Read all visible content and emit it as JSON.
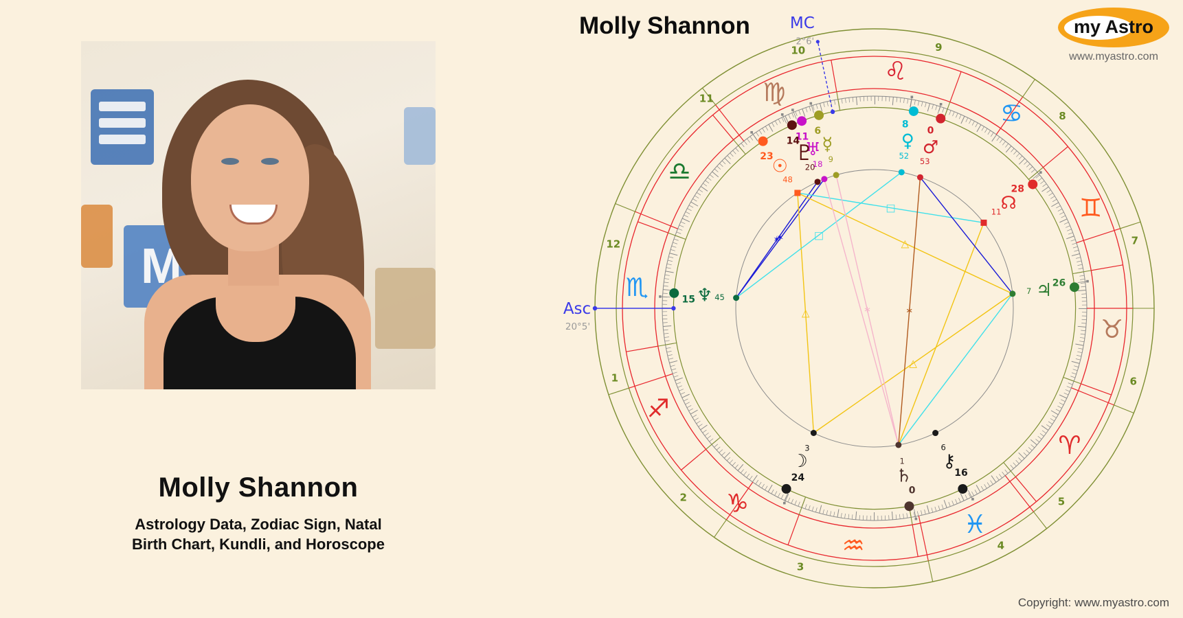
{
  "page": {
    "background": "#FBF1DE",
    "copyright": "Copyright: www.myastro.com"
  },
  "left_panel": {
    "name": "Molly Shannon",
    "subtitle_line1": "Astrology Data, Zodiac Sign, Natal",
    "subtitle_line2": "Birth Chart, Kundli, and Horoscope",
    "photo_alt": "Molly Shannon portrait"
  },
  "logo": {
    "text": "my Astro",
    "website": "www.myastro.com",
    "ellipse_color": "#F6A318"
  },
  "chart_data": {
    "type": "natal-wheel",
    "title": "Molly Shannon",
    "ascendant": {
      "label": "Asc",
      "degree_text": "20°5'",
      "longitude": 230.083,
      "color": "#3A3AE8"
    },
    "midheaven": {
      "label": "MC",
      "degree_text": "2°6'",
      "longitude": 152.1,
      "color": "#3A3AE8"
    },
    "colors": {
      "ring_green": "#7E8F33",
      "ring_red": "#E8252C",
      "tick_gray": "#8a8a8a",
      "aspect_circle": "#8c8c8c",
      "house_number": "#6B8A23",
      "degree_gray": "#9a9a9a"
    },
    "houses": [
      "1",
      "2",
      "3",
      "4",
      "5",
      "6",
      "7",
      "8",
      "9",
      "10",
      "11",
      "12"
    ],
    "house_cusp_longitudes": [
      230.083,
      248.08,
      285.08,
      332.1,
      358.08,
      28.08,
      50.083,
      68.08,
      105.08,
      152.1,
      178.08,
      208.08
    ],
    "house_label_angles": [
      195,
      224.7,
      254,
      298,
      314,
      344.2,
      14.6,
      45.7,
      76.2,
      106.5,
      128.7,
      166.2
    ],
    "signs": [
      {
        "name": "Aries",
        "glyph": "♈",
        "color": "#E02B2B"
      },
      {
        "name": "Taurus",
        "glyph": "♉",
        "color": "#B5795C"
      },
      {
        "name": "Gemini",
        "glyph": "♊",
        "color": "#FF5A1F"
      },
      {
        "name": "Cancer",
        "glyph": "♋",
        "color": "#2196F3"
      },
      {
        "name": "Leo",
        "glyph": "♌",
        "color": "#D92332"
      },
      {
        "name": "Virgo",
        "glyph": "♍",
        "color": "#B5795C"
      },
      {
        "name": "Libra",
        "glyph": "♎",
        "color": "#1B7A30"
      },
      {
        "name": "Scorpio",
        "glyph": "♏",
        "color": "#2196F3"
      },
      {
        "name": "Sagittarius",
        "glyph": "♐",
        "color": "#E02B2B"
      },
      {
        "name": "Capricorn",
        "glyph": "♑",
        "color": "#E02B2B"
      },
      {
        "name": "Aquarius",
        "glyph": "♒",
        "color": "#FF5A1F"
      },
      {
        "name": "Pisces",
        "glyph": "♓",
        "color": "#2196F3"
      }
    ],
    "planets": [
      {
        "name": "Sun",
        "glyph": "☉",
        "color": "#FF5A1F",
        "sign": "Virgo",
        "degree": 23,
        "minute": 48,
        "longitude": 173.8,
        "anchor": "square"
      },
      {
        "name": "Moon",
        "glyph": "☽",
        "color": "#1A1A1A",
        "sign": "Capricorn",
        "degree": 24,
        "minute": 3,
        "longitude": 294.05,
        "anchor": "circle"
      },
      {
        "name": "Mercury",
        "glyph": "☿",
        "color": "#9E9D24",
        "sign": "Virgo",
        "degree": 6,
        "minute": 9,
        "longitude": 156.15,
        "anchor": "circle"
      },
      {
        "name": "Venus",
        "glyph": "♀",
        "color": "#00BCD4",
        "sign": "Leo",
        "degree": 8,
        "minute": 52,
        "longitude": 128.87,
        "anchor": "circle"
      },
      {
        "name": "Mars",
        "glyph": "♂",
        "color": "#D2242E",
        "sign": "Leo",
        "degree": 0,
        "minute": 53,
        "longitude": 120.88,
        "anchor": "circle"
      },
      {
        "name": "Jupiter",
        "glyph": "♃",
        "color": "#2E7D32",
        "sign": "Taurus",
        "degree": 26,
        "minute": 7,
        "longitude": 56.12,
        "anchor": "circle"
      },
      {
        "name": "Saturn",
        "glyph": "♄",
        "color": "#4E342E",
        "sign": "Pisces",
        "degree": 0,
        "minute": 1,
        "longitude": 330.02,
        "anchor": "circle"
      },
      {
        "name": "Uranus",
        "glyph": "♅",
        "color": "#C813C8",
        "sign": "Virgo",
        "degree": 11,
        "minute": 18,
        "longitude": 161.3,
        "anchor": "circle"
      },
      {
        "name": "Neptune",
        "glyph": "♆",
        "color": "#0C6B3F",
        "sign": "Scorpio",
        "degree": 15,
        "minute": 45,
        "longitude": 225.75,
        "anchor": "circle"
      },
      {
        "name": "Pluto",
        "glyph": "♇",
        "color": "#5C1111",
        "sign": "Virgo",
        "degree": 14,
        "minute": 20,
        "longitude": 164.33,
        "anchor": "circle"
      },
      {
        "name": "North Node",
        "glyph": "☊",
        "color": "#E02B2B",
        "sign": "Gemini",
        "degree": 28,
        "minute": 11,
        "longitude": 88.18,
        "anchor": "square"
      },
      {
        "name": "Chiron",
        "glyph": "⚷",
        "color": "#1A1A1A",
        "sign": "Pisces",
        "degree": 16,
        "minute": 6,
        "longitude": 346.1,
        "anchor": "circle"
      }
    ],
    "aspects": [
      {
        "from": "Neptune",
        "to": "Pluto",
        "color": "#1A1AD6",
        "marker": "✶"
      },
      {
        "from": "Neptune",
        "to": "Uranus",
        "color": "#1A1AD6",
        "marker": "✶"
      },
      {
        "from": "Sun",
        "to": "Moon",
        "color": "#F2C413",
        "marker": "△"
      },
      {
        "from": "Sun",
        "to": "Jupiter",
        "color": "#F2C413",
        "marker": "△"
      },
      {
        "from": "Moon",
        "to": "Jupiter",
        "color": "#F2C413",
        "marker": "△"
      },
      {
        "from": "Saturn",
        "to": "North Node",
        "color": "#F2C413",
        "marker": ""
      },
      {
        "from": "Venus",
        "to": "Neptune",
        "color": "#3FE0EA",
        "marker": "□"
      },
      {
        "from": "Sun",
        "to": "North Node",
        "color": "#3FE0EA",
        "marker": "□"
      },
      {
        "from": "Jupiter",
        "to": "Saturn",
        "color": "#3FE0EA",
        "marker": ""
      },
      {
        "from": "Mars",
        "to": "Jupiter",
        "color": "#1A1AD6",
        "marker": ""
      },
      {
        "from": "Mercury",
        "to": "Saturn",
        "color": "#F5B5CB",
        "marker": "∗"
      },
      {
        "from": "Uranus",
        "to": "Saturn",
        "color": "#F5B5CB",
        "marker": ""
      },
      {
        "from": "Mars",
        "to": "Saturn",
        "color": "#B05A1E",
        "marker": "∗"
      }
    ]
  }
}
